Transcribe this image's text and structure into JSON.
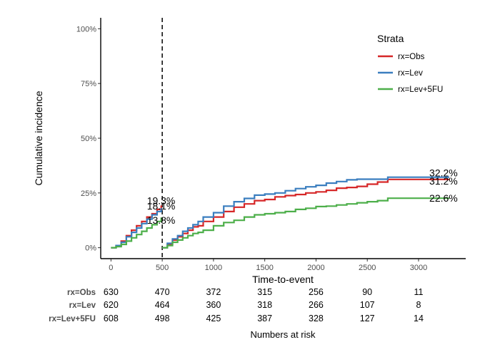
{
  "chart_data": {
    "type": "line",
    "title": "",
    "xlabel": "Time-to-event",
    "ylabel": "Cumulative incidence",
    "xlim": [
      -100,
      3460
    ],
    "ylim": [
      -0.05,
      1.05
    ],
    "x_ticks": [
      0,
      500,
      1000,
      1500,
      2000,
      2500,
      3000
    ],
    "x_tick_labels": [
      "0",
      "500",
      "1000",
      "1500",
      "2000",
      "2500",
      "3000"
    ],
    "y_ticks": [
      0,
      0.25,
      0.5,
      0.75,
      1.0
    ],
    "y_tick_labels": [
      "0%",
      "25%",
      "50%",
      "75%",
      "100%"
    ],
    "grid": false,
    "landmark_x": 500,
    "legend": {
      "title": "Strata",
      "position": "top-right"
    },
    "series": [
      {
        "name": "rx=Obs",
        "color": "#d62728",
        "segment1": {
          "x": [
            0,
            50,
            100,
            150,
            200,
            250,
            300,
            350,
            400,
            450,
            490
          ],
          "y": [
            0,
            0.01,
            0.03,
            0.055,
            0.08,
            0.1,
            0.12,
            0.14,
            0.155,
            0.175,
            0.193
          ]
        },
        "segment1_label": "19.3%",
        "segment2": {
          "x": [
            500,
            550,
            600,
            650,
            700,
            750,
            800,
            850,
            900,
            1000,
            1100,
            1200,
            1300,
            1400,
            1500,
            1600,
            1700,
            1800,
            1900,
            2000,
            2100,
            2200,
            2300,
            2400,
            2500,
            2600,
            2700,
            3000,
            3300
          ],
          "y": [
            0,
            0.015,
            0.035,
            0.05,
            0.065,
            0.08,
            0.095,
            0.1,
            0.12,
            0.14,
            0.165,
            0.185,
            0.2,
            0.215,
            0.22,
            0.232,
            0.238,
            0.243,
            0.25,
            0.255,
            0.262,
            0.272,
            0.275,
            0.28,
            0.29,
            0.3,
            0.312,
            0.312,
            0.312
          ]
        },
        "segment2_label": "31.2%"
      },
      {
        "name": "rx=Lev",
        "color": "#3a7ebf",
        "segment1": {
          "x": [
            0,
            50,
            100,
            150,
            200,
            250,
            300,
            350,
            400,
            450,
            490
          ],
          "y": [
            0,
            0.01,
            0.025,
            0.05,
            0.07,
            0.09,
            0.11,
            0.13,
            0.15,
            0.165,
            0.181
          ]
        },
        "segment1_label": "18.1%",
        "segment2": {
          "x": [
            500,
            550,
            600,
            650,
            700,
            750,
            800,
            850,
            900,
            1000,
            1100,
            1200,
            1300,
            1400,
            1500,
            1600,
            1700,
            1800,
            1900,
            2000,
            2100,
            2200,
            2300,
            2400,
            2500,
            2600,
            2700,
            3000,
            3300
          ],
          "y": [
            0,
            0.02,
            0.04,
            0.055,
            0.075,
            0.09,
            0.105,
            0.12,
            0.14,
            0.16,
            0.19,
            0.21,
            0.225,
            0.24,
            0.245,
            0.25,
            0.26,
            0.27,
            0.278,
            0.285,
            0.295,
            0.302,
            0.31,
            0.313,
            0.313,
            0.313,
            0.322,
            0.322,
            0.322
          ]
        },
        "segment2_label": "32.2%"
      },
      {
        "name": "rx=Lev+5FU",
        "color": "#4daf4a",
        "segment1": {
          "x": [
            0,
            50,
            100,
            150,
            200,
            250,
            300,
            350,
            400,
            450,
            490
          ],
          "y": [
            0,
            0.005,
            0.015,
            0.03,
            0.045,
            0.06,
            0.075,
            0.09,
            0.105,
            0.12,
            0.138
          ]
        },
        "segment1_label": "13.8%",
        "segment2": {
          "x": [
            500,
            550,
            600,
            650,
            700,
            750,
            800,
            850,
            900,
            1000,
            1100,
            1200,
            1300,
            1400,
            1500,
            1600,
            1700,
            1800,
            1900,
            2000,
            2100,
            2200,
            2300,
            2400,
            2500,
            2600,
            2700,
            3000,
            3300
          ],
          "y": [
            0,
            0.01,
            0.025,
            0.035,
            0.045,
            0.055,
            0.065,
            0.07,
            0.08,
            0.1,
            0.115,
            0.125,
            0.14,
            0.15,
            0.155,
            0.16,
            0.165,
            0.175,
            0.18,
            0.188,
            0.19,
            0.195,
            0.2,
            0.205,
            0.21,
            0.215,
            0.226,
            0.226,
            0.226
          ]
        },
        "segment2_label": "22.6%"
      }
    ],
    "risk_table": {
      "title": "Numbers at risk",
      "times": [
        0,
        500,
        1000,
        1500,
        2000,
        2500,
        3000
      ],
      "rows": [
        {
          "label": "rx=Obs",
          "values": [
            "630",
            "470",
            "372",
            "315",
            "256",
            "90",
            "11"
          ]
        },
        {
          "label": "rx=Lev",
          "values": [
            "620",
            "464",
            "360",
            "318",
            "266",
            "107",
            "8"
          ]
        },
        {
          "label": "rx=Lev+5FU",
          "values": [
            "608",
            "498",
            "425",
            "387",
            "328",
            "127",
            "14"
          ]
        }
      ]
    }
  }
}
